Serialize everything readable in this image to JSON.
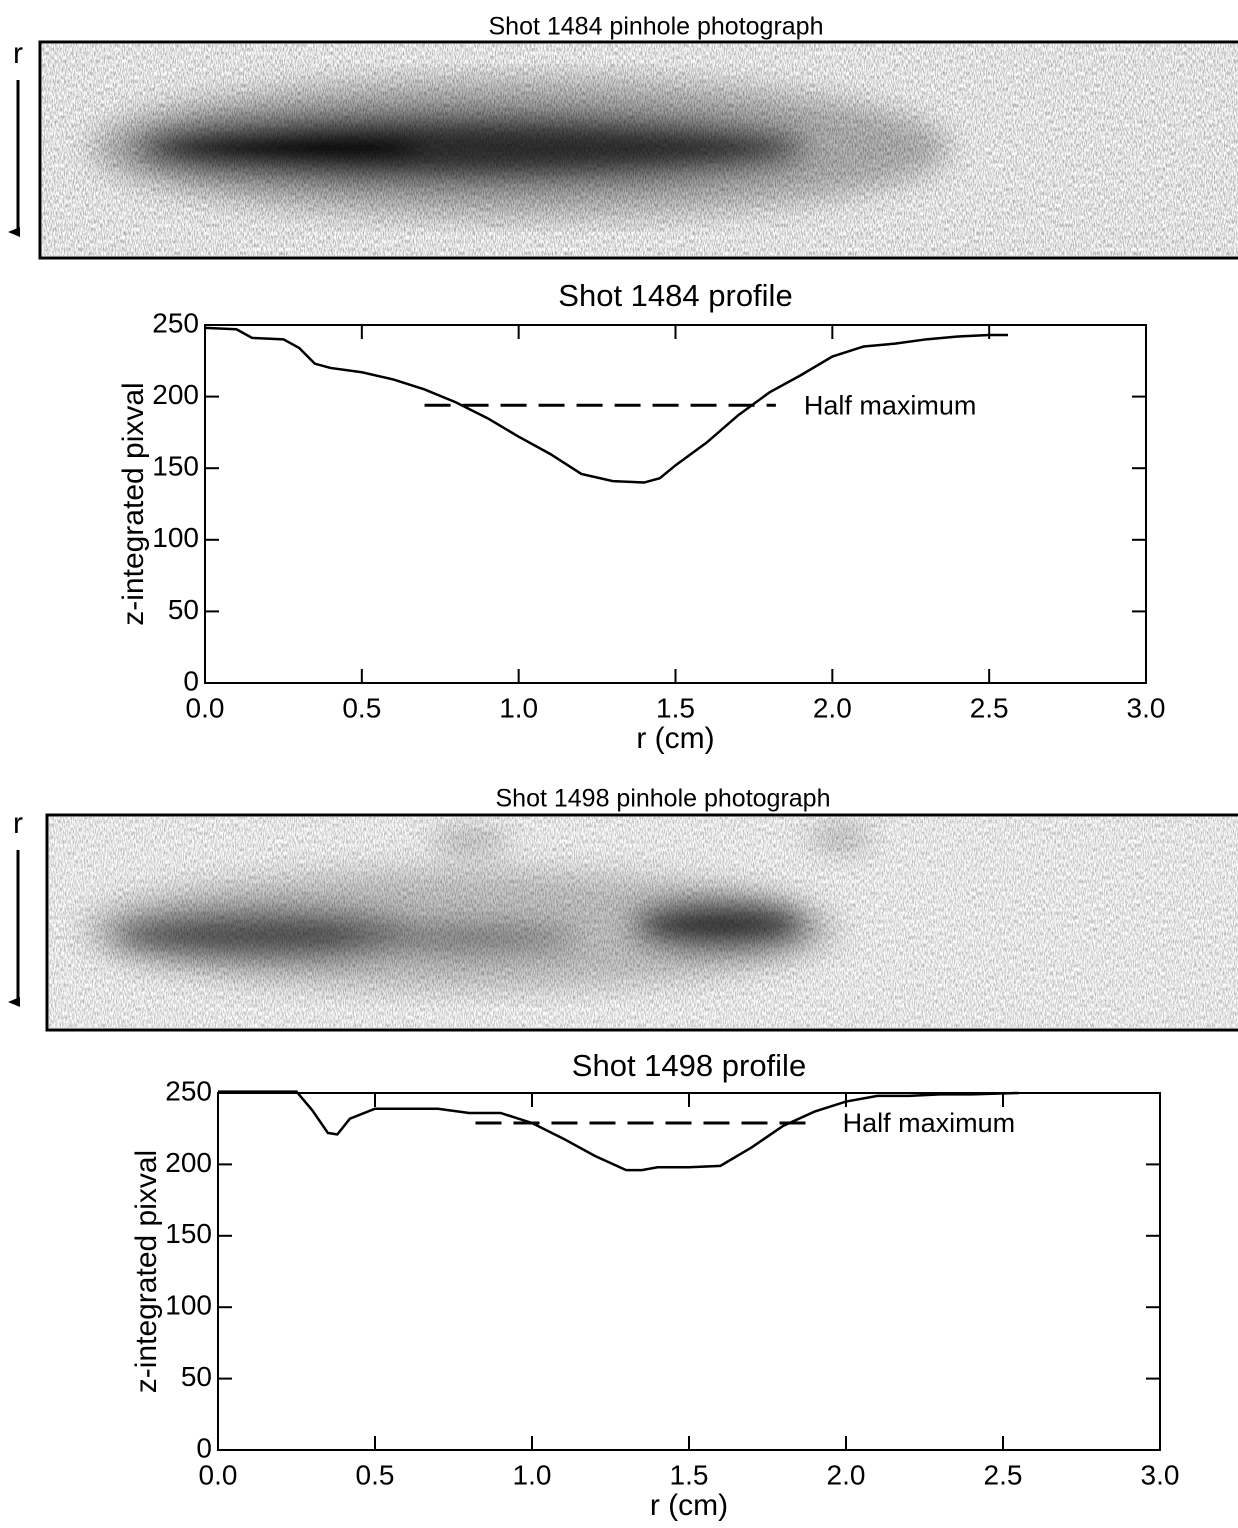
{
  "photographs": [
    {
      "title": "Shot 1484 pinhole photograph",
      "axis_label": "r"
    },
    {
      "title": "Shot 1498 pinhole photograph",
      "axis_label": "r"
    }
  ],
  "chart_data": [
    {
      "type": "line",
      "title": "Shot 1484 profile",
      "x_label": "r (cm)",
      "y_label": "z-integrated pixval",
      "x": [
        0,
        0.1,
        0.15,
        0.25,
        0.3,
        0.35,
        0.4,
        0.5,
        0.6,
        0.7,
        0.8,
        0.9,
        1.0,
        1.1,
        1.2,
        1.3,
        1.4,
        1.45,
        1.5,
        1.6,
        1.7,
        1.8,
        1.9,
        2.0,
        2.1,
        2.2,
        2.3,
        2.4,
        2.5,
        2.56
      ],
      "series": [
        {
          "color": "#000000",
          "values": [
            248,
            247,
            241,
            240,
            234,
            223,
            220,
            217,
            212,
            205,
            196,
            185,
            172,
            160,
            146,
            141,
            140,
            143,
            152,
            168,
            187,
            203,
            215,
            228,
            235,
            237,
            240,
            242,
            243,
            243
          ]
        }
      ],
      "half_maximum": {
        "label": "Half maximum",
        "y": 194,
        "x": [
          0.7,
          1.82
        ]
      },
      "xlim": [
        0,
        3
      ],
      "ylim": [
        0,
        250
      ],
      "xticks": [
        {
          "value": 0,
          "label": "0.0"
        },
        0.5,
        {
          "value": 1,
          "label": "1.0"
        },
        1.5,
        {
          "value": 2,
          "label": "2.0"
        },
        2.5,
        {
          "value": 3,
          "label": "3.0"
        }
      ],
      "yticks": [
        0,
        50,
        100,
        150,
        200,
        250
      ]
    },
    {
      "type": "line",
      "title": "Shot 1498 profile",
      "x_label": "r (cm)",
      "y_label": "z-integrated pixval",
      "x": [
        0,
        0.1,
        0.25,
        0.3,
        0.35,
        0.38,
        0.42,
        0.5,
        0.7,
        0.8,
        0.9,
        1.0,
        1.1,
        1.2,
        1.3,
        1.35,
        1.4,
        1.5,
        1.6,
        1.7,
        1.8,
        1.9,
        2.0,
        2.1,
        2.2,
        2.3,
        2.4,
        2.55
      ],
      "series": [
        {
          "color": "#000000",
          "values": [
            251,
            251,
            251,
            238,
            222,
            221,
            232,
            239,
            239,
            236,
            236,
            229,
            218,
            206,
            196,
            196,
            198,
            198,
            199,
            212,
            227,
            237,
            244,
            248,
            248,
            249,
            249,
            250
          ]
        }
      ],
      "half_maximum": {
        "label": "Half maximum",
        "y": 229,
        "x": [
          0.82,
          1.9
        ]
      },
      "xlim": [
        0,
        3
      ],
      "ylim": [
        0,
        250
      ],
      "xticks": [
        {
          "value": 0,
          "label": "0.0"
        },
        0.5,
        {
          "value": 1,
          "label": "1.0"
        },
        1.5,
        {
          "value": 2,
          "label": "2.0"
        },
        2.5,
        {
          "value": 3,
          "label": "3.0"
        }
      ],
      "yticks": [
        0,
        50,
        100,
        150,
        200,
        250
      ]
    }
  ]
}
